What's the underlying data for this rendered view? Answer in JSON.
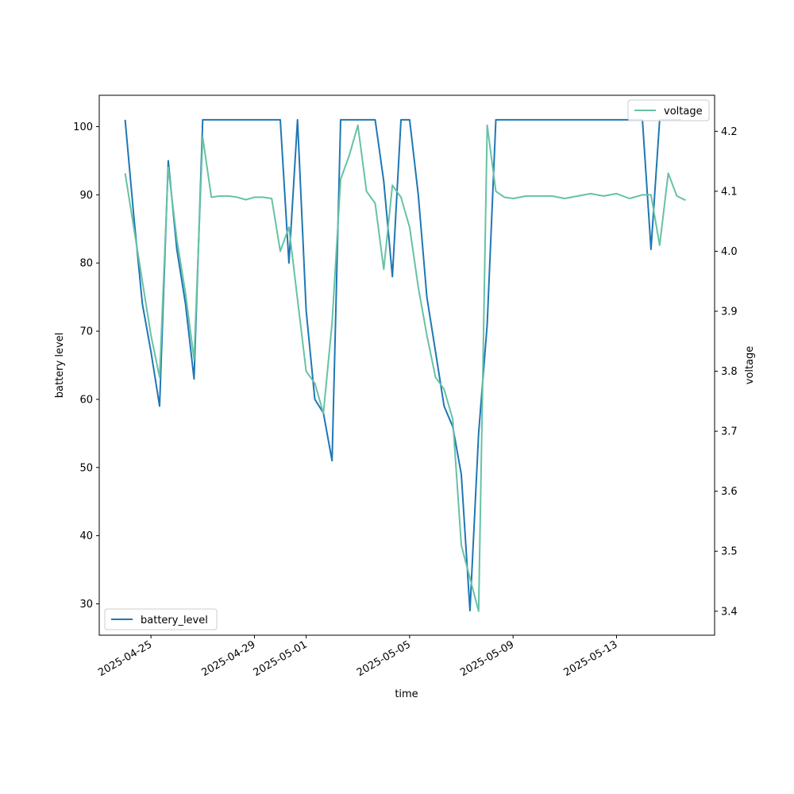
{
  "chart_data": {
    "type": "line",
    "title": "",
    "xlabel": "time",
    "ylabel_left": "battery level",
    "ylabel_right": "voltage",
    "x_ticks": [
      "2025-04-25",
      "2025-04-29",
      "2025-05-01",
      "2025-05-05",
      "2025-05-09",
      "2025-05-13"
    ],
    "y_left_ticks": [
      30,
      40,
      50,
      60,
      70,
      80,
      90,
      100
    ],
    "y_right_ticks": [
      "3.4",
      "3.5",
      "3.6",
      "3.7",
      "3.8",
      "3.9",
      "4.0",
      "4.1",
      "4.2"
    ],
    "ylim_left": [
      25.4,
      104.6
    ],
    "ylim_right": [
      3.36,
      4.26
    ],
    "xlim": [
      "2025-04-23 00:00",
      "2025-05-16 19:00"
    ],
    "grid": false,
    "series": [
      {
        "name": "battery_level",
        "axis": "left",
        "color": "#1f77b4",
        "legend_position": "lower-left",
        "points": [
          [
            "2025-04-24 00:00",
            101
          ],
          [
            "2025-04-24 08:00",
            87
          ],
          [
            "2025-04-24 16:00",
            74
          ],
          [
            "2025-04-25 00:00",
            67
          ],
          [
            "2025-04-25 08:00",
            59
          ],
          [
            "2025-04-25 16:00",
            95
          ],
          [
            "2025-04-26 00:00",
            82
          ],
          [
            "2025-04-26 08:00",
            74
          ],
          [
            "2025-04-26 16:00",
            63
          ],
          [
            "2025-04-27 00:00",
            101
          ],
          [
            "2025-04-27 12:00",
            101
          ],
          [
            "2025-04-28 00:00",
            101
          ],
          [
            "2025-04-28 12:00",
            101
          ],
          [
            "2025-04-29 00:00",
            101
          ],
          [
            "2025-04-29 12:00",
            101
          ],
          [
            "2025-04-30 00:00",
            101
          ],
          [
            "2025-04-30 08:00",
            80
          ],
          [
            "2025-04-30 16:00",
            101
          ],
          [
            "2025-05-01 00:00",
            73
          ],
          [
            "2025-05-01 08:00",
            60
          ],
          [
            "2025-05-01 16:00",
            58
          ],
          [
            "2025-05-02 00:00",
            51
          ],
          [
            "2025-05-02 08:00",
            101
          ],
          [
            "2025-05-02 16:00",
            101
          ],
          [
            "2025-05-03 00:00",
            101
          ],
          [
            "2025-05-03 08:00",
            101
          ],
          [
            "2025-05-03 16:00",
            101
          ],
          [
            "2025-05-04 00:00",
            92
          ],
          [
            "2025-05-04 08:00",
            78
          ],
          [
            "2025-05-04 16:00",
            101
          ],
          [
            "2025-05-05 00:00",
            101
          ],
          [
            "2025-05-05 08:00",
            90
          ],
          [
            "2025-05-05 16:00",
            75
          ],
          [
            "2025-05-06 00:00",
            67
          ],
          [
            "2025-05-06 08:00",
            59
          ],
          [
            "2025-05-06 16:00",
            56
          ],
          [
            "2025-05-07 00:00",
            49
          ],
          [
            "2025-05-07 08:00",
            29
          ],
          [
            "2025-05-07 16:00",
            55
          ],
          [
            "2025-05-08 00:00",
            71
          ],
          [
            "2025-05-08 08:00",
            101
          ],
          [
            "2025-05-09 00:00",
            101
          ],
          [
            "2025-05-10 00:00",
            101
          ],
          [
            "2025-05-11 00:00",
            101
          ],
          [
            "2025-05-12 00:00",
            101
          ],
          [
            "2025-05-13 00:00",
            101
          ],
          [
            "2025-05-14 00:00",
            101
          ],
          [
            "2025-05-14 08:00",
            82
          ],
          [
            "2025-05-14 16:00",
            101
          ],
          [
            "2025-05-15 00:00",
            101
          ],
          [
            "2025-05-15 12:00",
            101
          ]
        ]
      },
      {
        "name": "voltage",
        "axis": "right",
        "color": "#66c2a5",
        "legend_position": "upper-right",
        "points": [
          [
            "2025-04-24 00:00",
            4.13
          ],
          [
            "2025-04-24 08:00",
            4.04
          ],
          [
            "2025-04-24 16:00",
            3.95
          ],
          [
            "2025-04-25 00:00",
            3.86
          ],
          [
            "2025-04-25 08:00",
            3.79
          ],
          [
            "2025-04-25 16:00",
            4.14
          ],
          [
            "2025-04-26 00:00",
            4.02
          ],
          [
            "2025-04-26 08:00",
            3.93
          ],
          [
            "2025-04-26 16:00",
            3.82
          ],
          [
            "2025-04-27 00:00",
            4.19
          ],
          [
            "2025-04-27 08:00",
            4.09
          ],
          [
            "2025-04-27 16:00",
            4.092
          ],
          [
            "2025-04-28 00:00",
            4.092
          ],
          [
            "2025-04-28 08:00",
            4.09
          ],
          [
            "2025-04-28 16:00",
            4.086
          ],
          [
            "2025-04-29 00:00",
            4.09
          ],
          [
            "2025-04-29 08:00",
            4.09
          ],
          [
            "2025-04-29 16:00",
            4.088
          ],
          [
            "2025-04-30 00:00",
            4.0
          ],
          [
            "2025-04-30 08:00",
            4.04
          ],
          [
            "2025-04-30 16:00",
            3.92
          ],
          [
            "2025-05-01 00:00",
            3.8
          ],
          [
            "2025-05-01 08:00",
            3.78
          ],
          [
            "2025-05-01 16:00",
            3.73
          ],
          [
            "2025-05-02 00:00",
            3.88
          ],
          [
            "2025-05-02 08:00",
            4.12
          ],
          [
            "2025-05-02 16:00",
            4.16
          ],
          [
            "2025-05-03 00:00",
            4.21
          ],
          [
            "2025-05-03 08:00",
            4.1
          ],
          [
            "2025-05-03 16:00",
            4.08
          ],
          [
            "2025-05-04 00:00",
            3.97
          ],
          [
            "2025-05-04 08:00",
            4.11
          ],
          [
            "2025-05-04 16:00",
            4.09
          ],
          [
            "2025-05-05 00:00",
            4.04
          ],
          [
            "2025-05-05 08:00",
            3.94
          ],
          [
            "2025-05-05 16:00",
            3.86
          ],
          [
            "2025-05-06 00:00",
            3.79
          ],
          [
            "2025-05-06 08:00",
            3.77
          ],
          [
            "2025-05-06 16:00",
            3.72
          ],
          [
            "2025-05-07 00:00",
            3.51
          ],
          [
            "2025-05-07 16:00",
            3.4
          ],
          [
            "2025-05-08 00:00",
            4.21
          ],
          [
            "2025-05-08 08:00",
            4.1
          ],
          [
            "2025-05-08 16:00",
            4.09
          ],
          [
            "2025-05-09 00:00",
            4.088
          ],
          [
            "2025-05-09 12:00",
            4.092
          ],
          [
            "2025-05-10 00:00",
            4.092
          ],
          [
            "2025-05-10 12:00",
            4.092
          ],
          [
            "2025-05-11 00:00",
            4.088
          ],
          [
            "2025-05-11 12:00",
            4.092
          ],
          [
            "2025-05-12 00:00",
            4.096
          ],
          [
            "2025-05-12 12:00",
            4.092
          ],
          [
            "2025-05-13 00:00",
            4.096
          ],
          [
            "2025-05-13 12:00",
            4.088
          ],
          [
            "2025-05-14 00:00",
            4.094
          ],
          [
            "2025-05-14 08:00",
            4.094
          ],
          [
            "2025-05-14 16:00",
            4.01
          ],
          [
            "2025-05-15 00:00",
            4.13
          ],
          [
            "2025-05-15 08:00",
            4.092
          ],
          [
            "2025-05-15 16:00",
            4.085
          ]
        ]
      }
    ]
  }
}
